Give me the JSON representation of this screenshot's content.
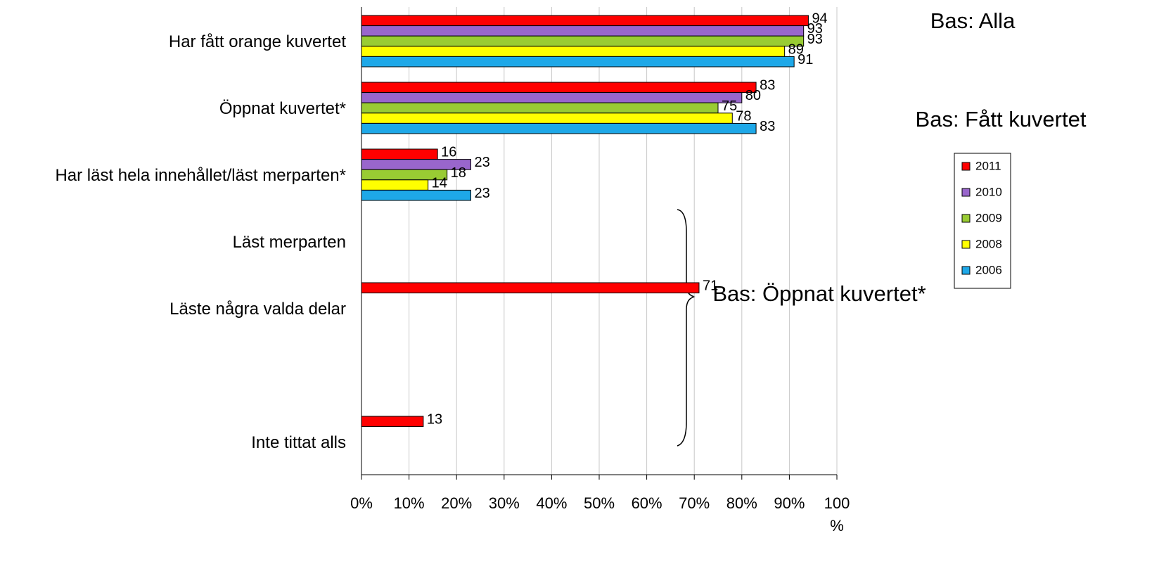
{
  "chart_data": {
    "type": "bar",
    "orientation": "horizontal",
    "categories": [
      "Har fått orange kuvertet",
      "Öppnat kuvertet*",
      "Har läst hela innehållet/läst merparten*",
      "Läst merparten",
      "Läste några valda delar",
      null,
      "Inte tittat alls"
    ],
    "series": [
      {
        "name": "2011",
        "color": "#ff0000",
        "values": [
          94,
          83,
          16,
          null,
          71,
          null,
          13
        ]
      },
      {
        "name": "2010",
        "color": "#9966cc",
        "values": [
          93,
          80,
          23,
          null,
          null,
          null,
          null
        ]
      },
      {
        "name": "2009",
        "color": "#99cc33",
        "values": [
          93,
          75,
          18,
          null,
          null,
          null,
          null
        ]
      },
      {
        "name": "2008",
        "color": "#ffff00",
        "values": [
          89,
          78,
          14,
          null,
          null,
          null,
          null
        ]
      },
      {
        "name": "2006",
        "color": "#1ea8e8",
        "values": [
          91,
          83,
          23,
          null,
          null,
          null,
          null
        ]
      }
    ],
    "xlim": [
      0,
      100
    ],
    "xticks": [
      {
        "value": 0,
        "label": "0%"
      },
      {
        "value": 10,
        "label": "10%"
      },
      {
        "value": 20,
        "label": "20%"
      },
      {
        "value": 30,
        "label": "30%"
      },
      {
        "value": 40,
        "label": "40%"
      },
      {
        "value": 50,
        "label": "50%"
      },
      {
        "value": 60,
        "label": "60%"
      },
      {
        "value": 70,
        "label": "70%"
      },
      {
        "value": 80,
        "label": "80%"
      },
      {
        "value": 90,
        "label": "90%"
      },
      {
        "value": 100,
        "label": "100 %"
      }
    ],
    "grid": true,
    "legend": "right",
    "annotations": [
      "Bas: Alla",
      "Bas: Fått kuvertet",
      "Bas: Öppnat kuvertet*"
    ]
  }
}
